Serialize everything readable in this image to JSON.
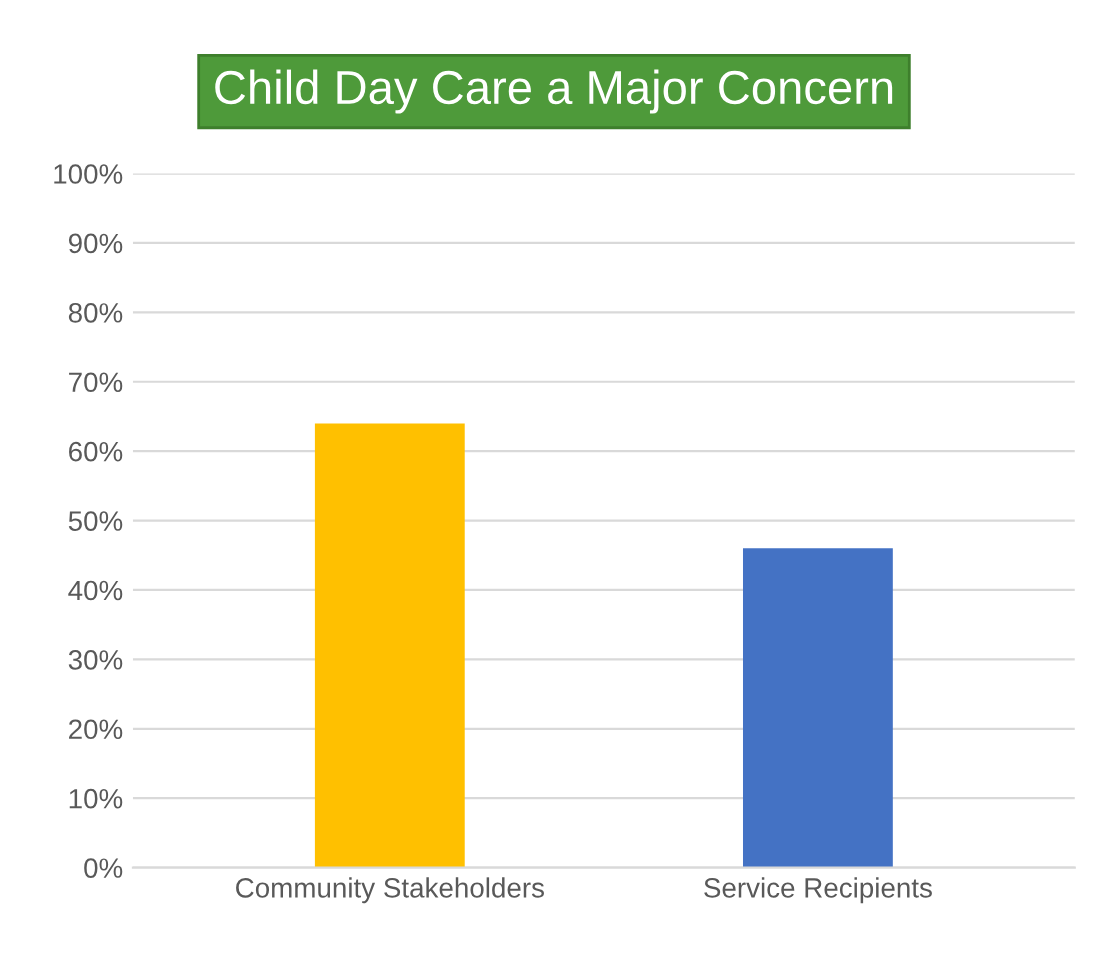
{
  "chart_data": {
    "type": "bar",
    "title": "Child Day Care a Major Concern",
    "categories": [
      "Community Stakeholders",
      "Service Recipients"
    ],
    "values": [
      64,
      46
    ],
    "colors": [
      "#ffc000",
      "#4472c4"
    ],
    "ylim": [
      0,
      100
    ],
    "yticks": [
      {
        "value": 0,
        "label": "0%"
      },
      {
        "value": 10,
        "label": "10%"
      },
      {
        "value": 20,
        "label": "20%"
      },
      {
        "value": 30,
        "label": "30%"
      },
      {
        "value": 40,
        "label": "40%"
      },
      {
        "value": 50,
        "label": "50%"
      },
      {
        "value": 60,
        "label": "60%"
      },
      {
        "value": 70,
        "label": "70%"
      },
      {
        "value": 80,
        "label": "80%"
      },
      {
        "value": 90,
        "label": "90%"
      },
      {
        "value": 100,
        "label": "100%"
      }
    ],
    "grid": "y"
  }
}
